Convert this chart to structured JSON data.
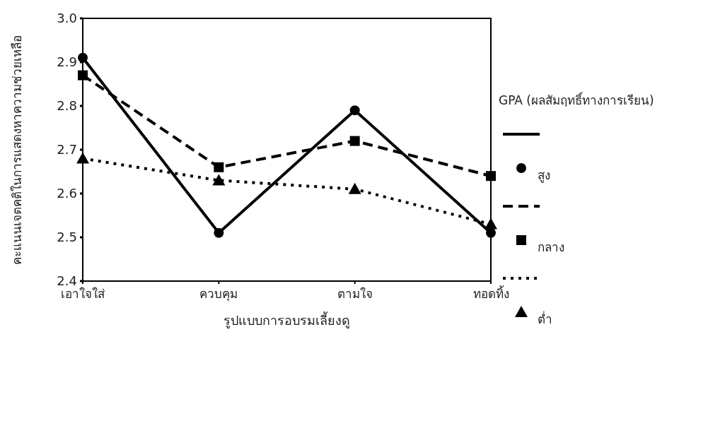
{
  "chart_data": {
    "type": "line",
    "xlabel": "รูปแบบการอบรมเลี้ยงดู",
    "ylabel": "คะแนนเจตคติในการแสดงหาความช่วยเหลือ",
    "legend_title": "GPA (ผลสัมฤทธิ์ทางการเรียน)",
    "legend": "right",
    "categories": [
      "เอาใจใส่",
      "ควบคุม",
      "ตามใจ",
      "ทอดทิ้ง"
    ],
    "ylim": [
      2.4,
      3.0
    ],
    "yticks": [
      2.4,
      2.5,
      2.6,
      2.7,
      2.8,
      2.9,
      {
        "value": 3,
        "label": "3.0"
      }
    ],
    "series": [
      {
        "name": "สูง",
        "color": "#000000",
        "marker": "circle",
        "line_style": "solid",
        "values": [
          2.91,
          2.51,
          2.79,
          2.51
        ]
      },
      {
        "name": "กลาง",
        "color": "#000000",
        "marker": "square",
        "line_style": "dashed",
        "values": [
          2.87,
          2.66,
          2.72,
          2.64
        ]
      },
      {
        "name": "ต่ำ",
        "color": "#000000",
        "marker": "triangle",
        "line_style": "dotted",
        "values": [
          2.68,
          2.63,
          2.61,
          2.53
        ]
      }
    ]
  }
}
